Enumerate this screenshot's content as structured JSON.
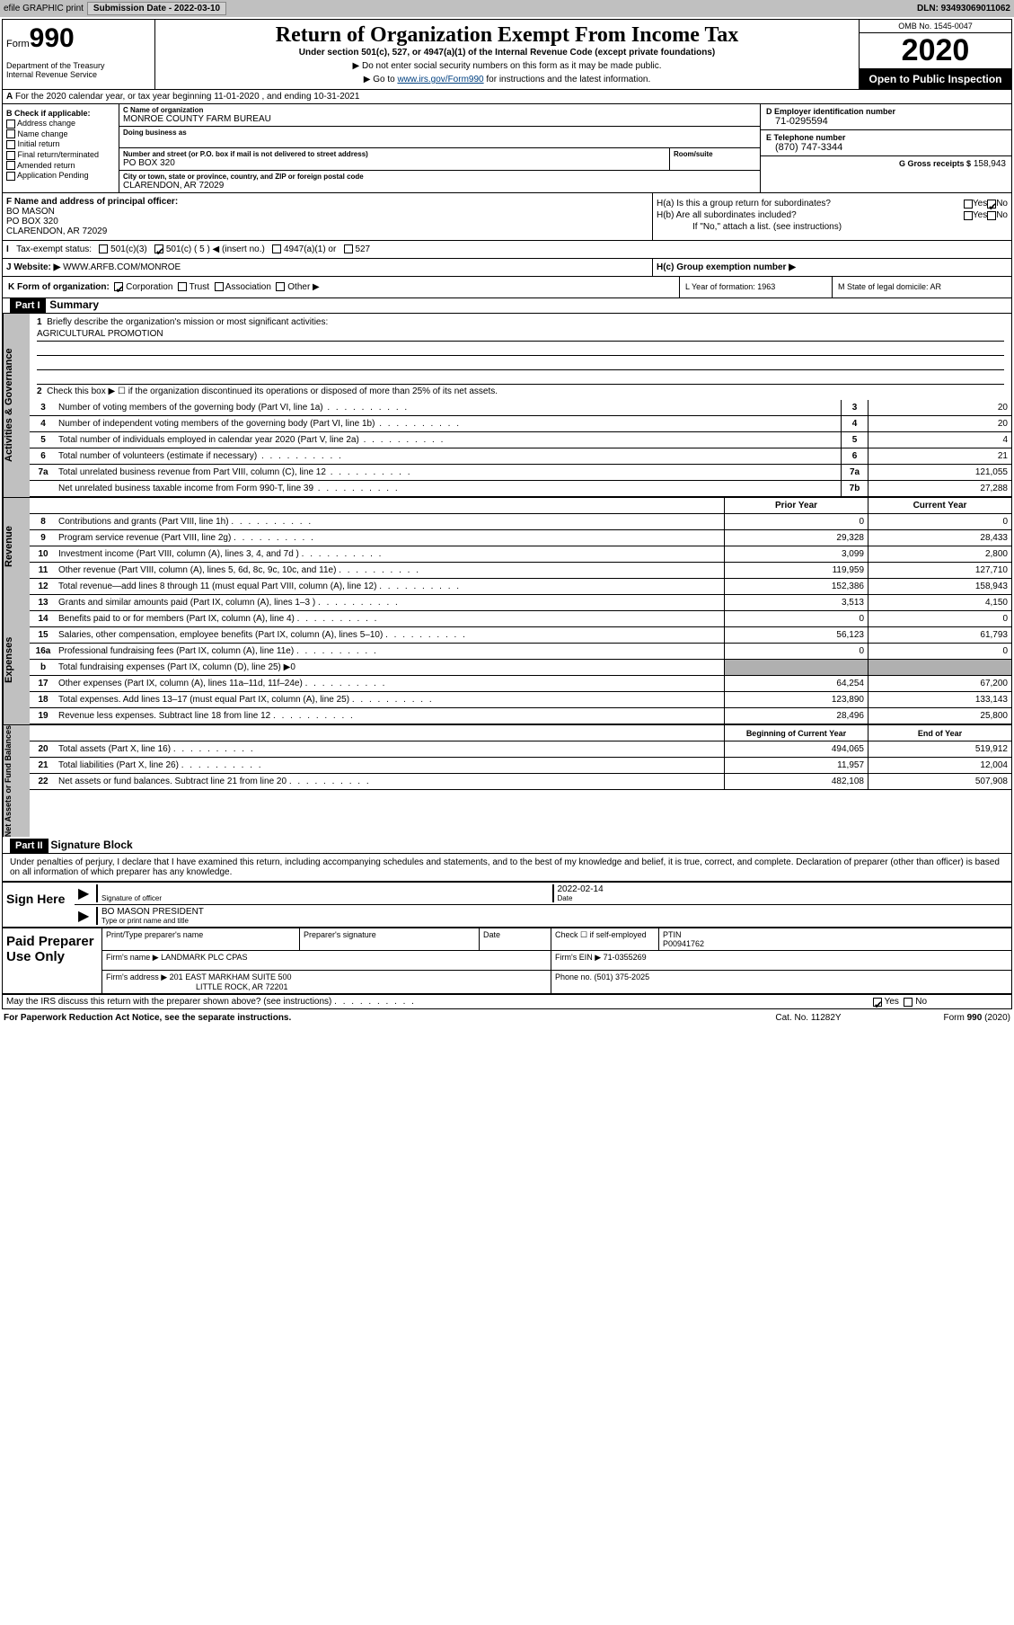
{
  "topbar": {
    "efile": "efile GRAPHIC print",
    "submission": "Submission Date - 2022-03-10",
    "dln": "DLN: 93493069011062"
  },
  "header": {
    "form": "Form",
    "formnum": "990",
    "dept": "Department of the Treasury\nInternal Revenue Service",
    "title": "Return of Organization Exempt From Income Tax",
    "subtitle": "Under section 501(c), 527, or 4947(a)(1) of the Internal Revenue Code (except private foundations)",
    "inst1": "▶ Do not enter social security numbers on this form as it may be made public.",
    "inst2_pre": "▶ Go to ",
    "inst2_link": "www.irs.gov/Form990",
    "inst2_post": " for instructions and the latest information.",
    "omb": "OMB No. 1545-0047",
    "year": "2020",
    "inspection": "Open to Public Inspection"
  },
  "lineA": "For the 2020 calendar year, or tax year beginning 11-01-2020   , and ending 10-31-2021",
  "colB": {
    "title": "B Check if applicable:",
    "items": [
      "Address change",
      "Name change",
      "Initial return",
      "Final return/terminated",
      "Amended return",
      "Application Pending"
    ]
  },
  "colC": {
    "nameLabel": "C Name of organization",
    "name": "MONROE COUNTY FARM BUREAU",
    "dbaLabel": "Doing business as",
    "dba": "",
    "streetLabel": "Number and street (or P.O. box if mail is not delivered to street address)",
    "street": "PO BOX 320",
    "roomLabel": "Room/suite",
    "cityLabel": "City or town, state or province, country, and ZIP or foreign postal code",
    "city": "CLARENDON, AR  72029"
  },
  "colDE": {
    "dLabel": "D Employer identification number",
    "ein": "71-0295594",
    "eLabel": "E Telephone number",
    "phone": "(870) 747-3344",
    "gLabel": "G Gross receipts $",
    "gross": "158,943"
  },
  "colF": {
    "label": "F Name and address of principal officer:",
    "name": "BO MASON",
    "addr1": "PO BOX 320",
    "addr2": "CLARENDON, AR  72029"
  },
  "colH": {
    "ha": "H(a)  Is this a group return for subordinates?",
    "hb": "H(b)  Are all subordinates included?",
    "hnote": "If \"No,\" attach a list. (see instructions)",
    "hc": "H(c)  Group exemption number ▶"
  },
  "status": {
    "label": "Tax-exempt status:",
    "opts": [
      "501(c)(3)",
      "501(c) ( 5 ) ◀ (insert no.)",
      "4947(a)(1) or",
      "527"
    ]
  },
  "website": {
    "j": "J   Website: ▶",
    "url": "WWW.ARFB.COM/MONROE"
  },
  "korg": {
    "k": "K Form of organization:",
    "opts": [
      "Corporation",
      "Trust",
      "Association",
      "Other ▶"
    ],
    "l": "L Year of formation: 1963",
    "m": "M State of legal domicile: AR"
  },
  "partI": {
    "header": "Part I",
    "title": "Summary",
    "q1": "Briefly describe the organization's mission or most significant activities:",
    "mission": "AGRICULTURAL PROMOTION",
    "q2": "Check this box ▶ ☐  if the organization discontinued its operations or disposed of more than 25% of its net assets."
  },
  "governance": {
    "label": "Activities & Governance",
    "rows": [
      {
        "n": "3",
        "d": "Number of voting members of the governing body (Part VI, line 1a)",
        "ln": "3",
        "v": "20"
      },
      {
        "n": "4",
        "d": "Number of independent voting members of the governing body (Part VI, line 1b)",
        "ln": "4",
        "v": "20"
      },
      {
        "n": "5",
        "d": "Total number of individuals employed in calendar year 2020 (Part V, line 2a)",
        "ln": "5",
        "v": "4"
      },
      {
        "n": "6",
        "d": "Total number of volunteers (estimate if necessary)",
        "ln": "6",
        "v": "21"
      },
      {
        "n": "7a",
        "d": "Total unrelated business revenue from Part VIII, column (C), line 12",
        "ln": "7a",
        "v": "121,055"
      },
      {
        "n": "",
        "d": "Net unrelated business taxable income from Form 990-T, line 39",
        "ln": "7b",
        "v": "27,288"
      }
    ]
  },
  "revenue": {
    "label": "Revenue",
    "h1": "Prior Year",
    "h2": "Current Year",
    "rows": [
      {
        "n": "8",
        "d": "Contributions and grants (Part VIII, line 1h)",
        "v1": "0",
        "v2": "0"
      },
      {
        "n": "9",
        "d": "Program service revenue (Part VIII, line 2g)",
        "v1": "29,328",
        "v2": "28,433"
      },
      {
        "n": "10",
        "d": "Investment income (Part VIII, column (A), lines 3, 4, and 7d )",
        "v1": "3,099",
        "v2": "2,800"
      },
      {
        "n": "11",
        "d": "Other revenue (Part VIII, column (A), lines 5, 6d, 8c, 9c, 10c, and 11e)",
        "v1": "119,959",
        "v2": "127,710"
      },
      {
        "n": "12",
        "d": "Total revenue—add lines 8 through 11 (must equal Part VIII, column (A), line 12)",
        "v1": "152,386",
        "v2": "158,943"
      }
    ]
  },
  "expenses": {
    "label": "Expenses",
    "rows": [
      {
        "n": "13",
        "d": "Grants and similar amounts paid (Part IX, column (A), lines 1–3 )",
        "v1": "3,513",
        "v2": "4,150"
      },
      {
        "n": "14",
        "d": "Benefits paid to or for members (Part IX, column (A), line 4)",
        "v1": "0",
        "v2": "0"
      },
      {
        "n": "15",
        "d": "Salaries, other compensation, employee benefits (Part IX, column (A), lines 5–10)",
        "v1": "56,123",
        "v2": "61,793"
      },
      {
        "n": "16a",
        "d": "Professional fundraising fees (Part IX, column (A), line 11e)",
        "v1": "0",
        "v2": "0"
      },
      {
        "n": "b",
        "d": "Total fundraising expenses (Part IX, column (D), line 25) ▶0",
        "v1": "",
        "v2": "",
        "shaded": true
      },
      {
        "n": "17",
        "d": "Other expenses (Part IX, column (A), lines 11a–11d, 11f–24e)",
        "v1": "64,254",
        "v2": "67,200"
      },
      {
        "n": "18",
        "d": "Total expenses. Add lines 13–17 (must equal Part IX, column (A), line 25)",
        "v1": "123,890",
        "v2": "133,143"
      },
      {
        "n": "19",
        "d": "Revenue less expenses. Subtract line 18 from line 12",
        "v1": "28,496",
        "v2": "25,800"
      }
    ]
  },
  "netassets": {
    "label": "Net Assets or Fund Balances",
    "h1": "Beginning of Current Year",
    "h2": "End of Year",
    "rows": [
      {
        "n": "20",
        "d": "Total assets (Part X, line 16)",
        "v1": "494,065",
        "v2": "519,912"
      },
      {
        "n": "21",
        "d": "Total liabilities (Part X, line 26)",
        "v1": "11,957",
        "v2": "12,004"
      },
      {
        "n": "22",
        "d": "Net assets or fund balances. Subtract line 21 from line 20",
        "v1": "482,108",
        "v2": "507,908"
      }
    ]
  },
  "partII": {
    "header": "Part II",
    "title": "Signature Block",
    "text": "Under penalties of perjury, I declare that I have examined this return, including accompanying schedules and statements, and to the best of my knowledge and belief, it is true, correct, and complete. Declaration of preparer (other than officer) is based on all information of which preparer has any knowledge."
  },
  "sign": {
    "label": "Sign Here",
    "sig": "Signature of officer",
    "date": "2022-02-14",
    "dateLabel": "Date",
    "name": "BO MASON PRESIDENT",
    "nameLabel": "Type or print name and title"
  },
  "prep": {
    "label": "Paid Preparer Use Only",
    "h1": "Print/Type preparer's name",
    "h2": "Preparer's signature",
    "h3": "Date",
    "h4": "Check ☐ if self-employed",
    "h5": "PTIN",
    "ptin": "P00941762",
    "firm": "Firm's name    ▶",
    "firmname": "LANDMARK PLC CPAS",
    "ein": "Firm's EIN ▶ 71-0355269",
    "addr": "Firm's address ▶",
    "addrval": "201 EAST MARKHAM SUITE 500",
    "addrval2": "LITTLE ROCK, AR  72201",
    "phone": "Phone no. (501) 375-2025"
  },
  "discuss": "May the IRS discuss this return with the preparer shown above? (see instructions)",
  "footer": {
    "left": "For Paperwork Reduction Act Notice, see the separate instructions.",
    "mid": "Cat. No. 11282Y",
    "right": "Form 990 (2020)"
  }
}
